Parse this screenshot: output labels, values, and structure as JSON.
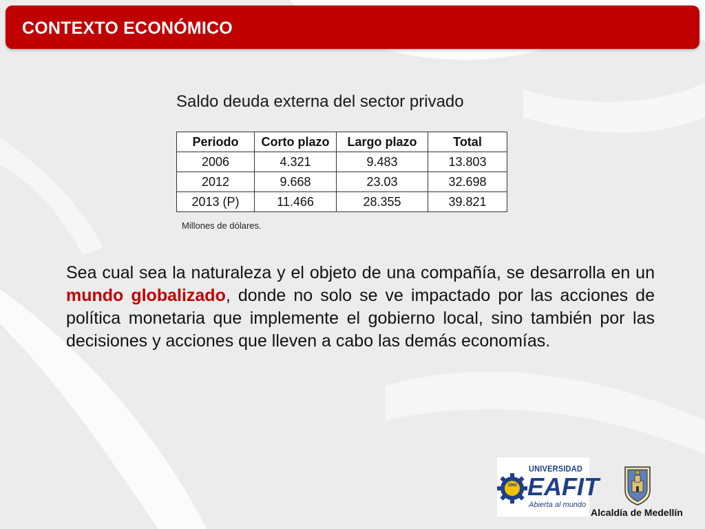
{
  "header": {
    "title": "CONTEXTO ECONÓMICO"
  },
  "table": {
    "caption": "Saldo deuda externa del sector privado",
    "columns": [
      "Periodo",
      "Corto plazo",
      "Largo plazo",
      "Total"
    ],
    "rows": [
      [
        "2006",
        "4.321",
        "9.483",
        "13.803"
      ],
      [
        "2012",
        "9.668",
        "23.03",
        "32.698"
      ],
      [
        "2013 (P)",
        "11.466",
        "28.355",
        "39.821"
      ]
    ],
    "note": "Millones de dólares."
  },
  "paragraph": {
    "before": "Sea cual sea la naturaleza y el objeto de una compañía, se desarrolla en un ",
    "highlight": "mundo globalizado",
    "after": ", donde no solo se ve impactado por las acciones de política monetaria que implemente el gobierno local, sino también por las decisiones y acciones que lleven a cabo las demás economías."
  },
  "logos": {
    "eafit": {
      "top": "UNIVERSIDAD",
      "name": "EAFIT",
      "sub": "Abierta al mundo",
      "year": "1960",
      "icon": "eafit-gear-logo"
    },
    "medellin": {
      "name": "Alcaldía de Medellín",
      "icon": "medellin-crest-icon"
    }
  },
  "colors": {
    "accent": "#c00000",
    "eafit_blue": "#1f3f86",
    "eafit_gold": "#f2c200"
  }
}
